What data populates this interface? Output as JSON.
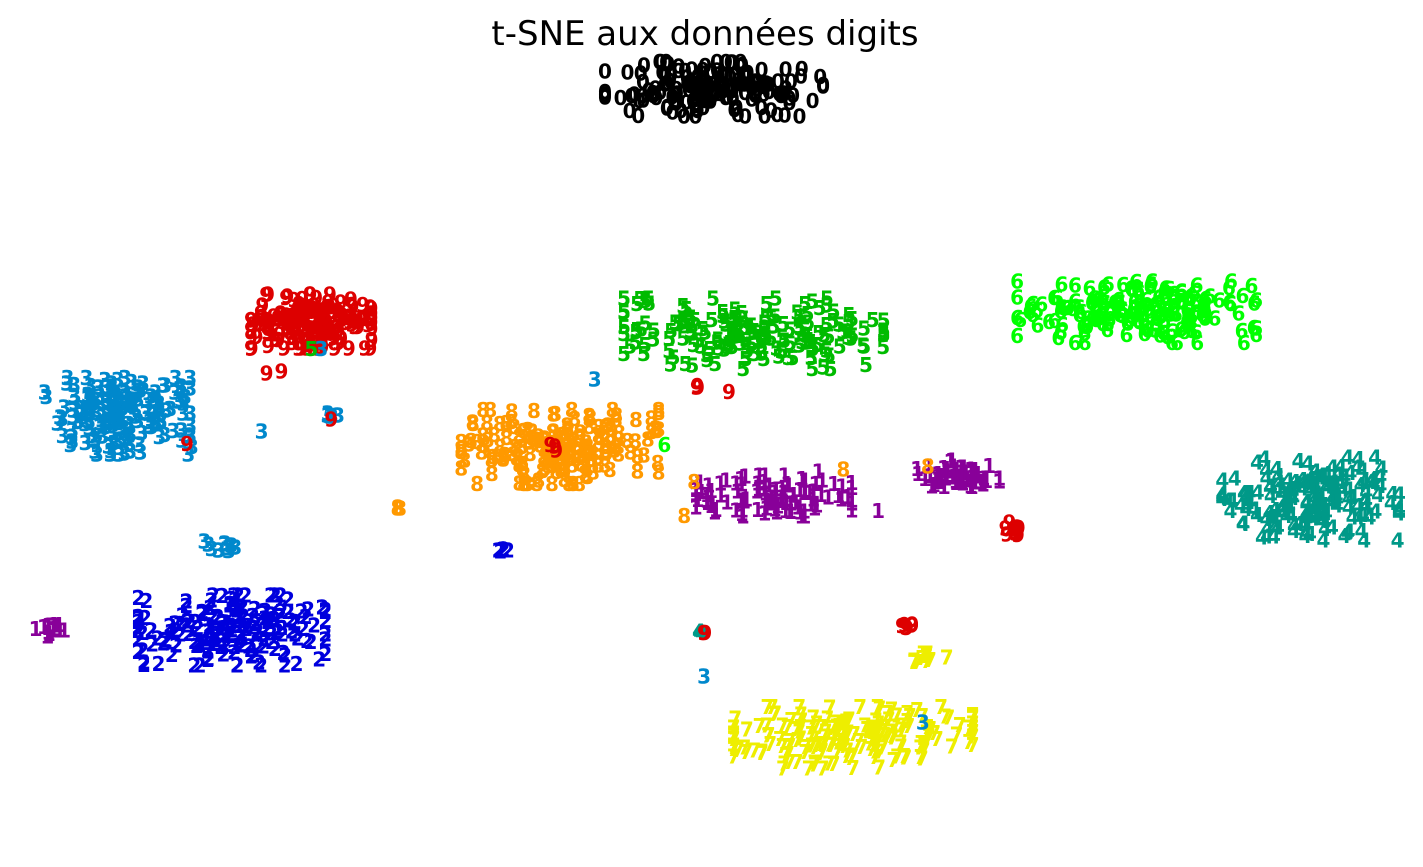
{
  "chart_data": {
    "type": "scatter",
    "title": "t-SNE aux données digits",
    "xlabel": "",
    "ylabel": "",
    "grid": false,
    "axes_visible": false,
    "xlim": [
      -70,
      70
    ],
    "ylim": [
      -67,
      67
    ],
    "colors": {
      "0": "#000000",
      "1": "#880099",
      "2": "#0000dd",
      "3": "#0088cc",
      "4": "#009988",
      "5": "#00bb00",
      "6": "#00ff00",
      "7": "#eeee00",
      "8": "#ff9900",
      "9": "#dd0000"
    },
    "clusters": [
      {
        "label": "0",
        "center": [
          0.0,
          59.0
        ],
        "spread": [
          10.5,
          4.3
        ],
        "count": 170
      },
      {
        "label": "5",
        "center": [
          4.0,
          19.0
        ],
        "spread": [
          12.5,
          5.5
        ],
        "count": 175
      },
      {
        "label": "6",
        "center": [
          42.5,
          22.5
        ],
        "spread": [
          11.5,
          4.8
        ],
        "count": 180
      },
      {
        "label": "9",
        "center": [
          -40.5,
          21.0
        ],
        "spread": [
          5.8,
          4.2
        ],
        "count": 170
      },
      {
        "label": "3",
        "center": [
          -60.0,
          5.5
        ],
        "spread": [
          7.0,
          6.0
        ],
        "count": 175
      },
      {
        "label": "8",
        "center": [
          -15.5,
          0.5
        ],
        "spread": [
          9.5,
          5.8
        ],
        "count": 175
      },
      {
        "label": "1",
        "center": [
          6.0,
          -7.5
        ],
        "spread": [
          7.5,
          3.2
        ],
        "count": 100
      },
      {
        "label": "1",
        "center": [
          24.5,
          -4.0
        ],
        "spread": [
          4.0,
          2.3
        ],
        "count": 60
      },
      {
        "label": "4",
        "center": [
          60.0,
          -8.0
        ],
        "spread": [
          8.5,
          6.5
        ],
        "count": 180
      },
      {
        "label": "2",
        "center": [
          -48.5,
          -29.5
        ],
        "spread": [
          9.0,
          5.5
        ],
        "count": 180
      },
      {
        "label": "7",
        "center": [
          14.0,
          -47.0
        ],
        "spread": [
          11.5,
          4.8
        ],
        "count": 180
      },
      {
        "label": "1",
        "center": [
          -67.0,
          -29.5
        ],
        "spread": [
          1.6,
          0.9
        ],
        "count": 14
      },
      {
        "label": "9",
        "center": [
          30.0,
          -13.0
        ],
        "spread": [
          1.8,
          1.4
        ],
        "count": 12
      },
      {
        "label": "7",
        "center": [
          21.0,
          -34.0
        ],
        "spread": [
          2.3,
          0.8
        ],
        "count": 10
      },
      {
        "label": "9",
        "center": [
          19.0,
          -28.5
        ],
        "spread": [
          0.9,
          0.7
        ],
        "count": 6
      },
      {
        "label": "3",
        "center": [
          -50.0,
          -15.5
        ],
        "spread": [
          2.0,
          1.0
        ],
        "count": 10
      },
      {
        "label": "3",
        "center": [
          -38.5,
          5.5
        ],
        "spread": [
          1.0,
          0.6
        ],
        "count": 6
      },
      {
        "label": "2",
        "center": [
          -21.0,
          -16.5
        ],
        "spread": [
          1.2,
          0.3
        ],
        "count": 6
      },
      {
        "label": "8",
        "center": [
          -32.0,
          -9.5
        ],
        "spread": [
          0.5,
          0.3
        ],
        "count": 3
      },
      {
        "label": "9",
        "center": [
          -1.5,
          10.5
        ],
        "spread": [
          0.4,
          0.3
        ],
        "count": 3
      },
      {
        "label": "9",
        "center": [
          -16.0,
          0.0
        ],
        "spread": [
          0.5,
          0.8
        ],
        "count": 3
      },
      {
        "label": "4",
        "center": [
          -1.5,
          -29.8
        ],
        "spread": [
          0.3,
          0.2
        ],
        "count": 3
      },
      {
        "label": "9",
        "center": [
          -1.0,
          -29.8
        ],
        "spread": [
          0.2,
          0.2
        ],
        "count": 2
      }
    ],
    "points": [
      {
        "label": "3",
        "x": -12.0,
        "y": 11.5
      },
      {
        "label": "3",
        "x": -1.0,
        "y": -37.0
      },
      {
        "label": "3",
        "x": 21.0,
        "y": -44.5
      },
      {
        "label": "3",
        "x": -39.5,
        "y": 16.5
      },
      {
        "label": "3",
        "x": -45.5,
        "y": 3.0
      },
      {
        "label": "3",
        "x": -52.5,
        "y": 0.5
      },
      {
        "label": "5",
        "x": -40.5,
        "y": 16.5
      },
      {
        "label": "9",
        "x": -38.5,
        "y": 5.0
      },
      {
        "label": "9",
        "x": -45.0,
        "y": 12.5
      },
      {
        "label": "9",
        "x": -43.5,
        "y": 12.8
      },
      {
        "label": "9",
        "x": -53.0,
        "y": 1.0
      },
      {
        "label": "9",
        "x": 1.5,
        "y": 9.5
      },
      {
        "label": "6",
        "x": -5.0,
        "y": 0.8
      },
      {
        "label": "8",
        "x": 13.0,
        "y": -3.2
      },
      {
        "label": "8",
        "x": 21.5,
        "y": -2.7
      },
      {
        "label": "8",
        "x": -2.0,
        "y": -5.2
      },
      {
        "label": "8",
        "x": -3.0,
        "y": -10.8
      },
      {
        "label": "1",
        "x": 10.5,
        "y": -3.5
      },
      {
        "label": "1",
        "x": 12.5,
        "y": -7.5
      },
      {
        "label": "1",
        "x": 16.5,
        "y": -10.0
      }
    ]
  }
}
